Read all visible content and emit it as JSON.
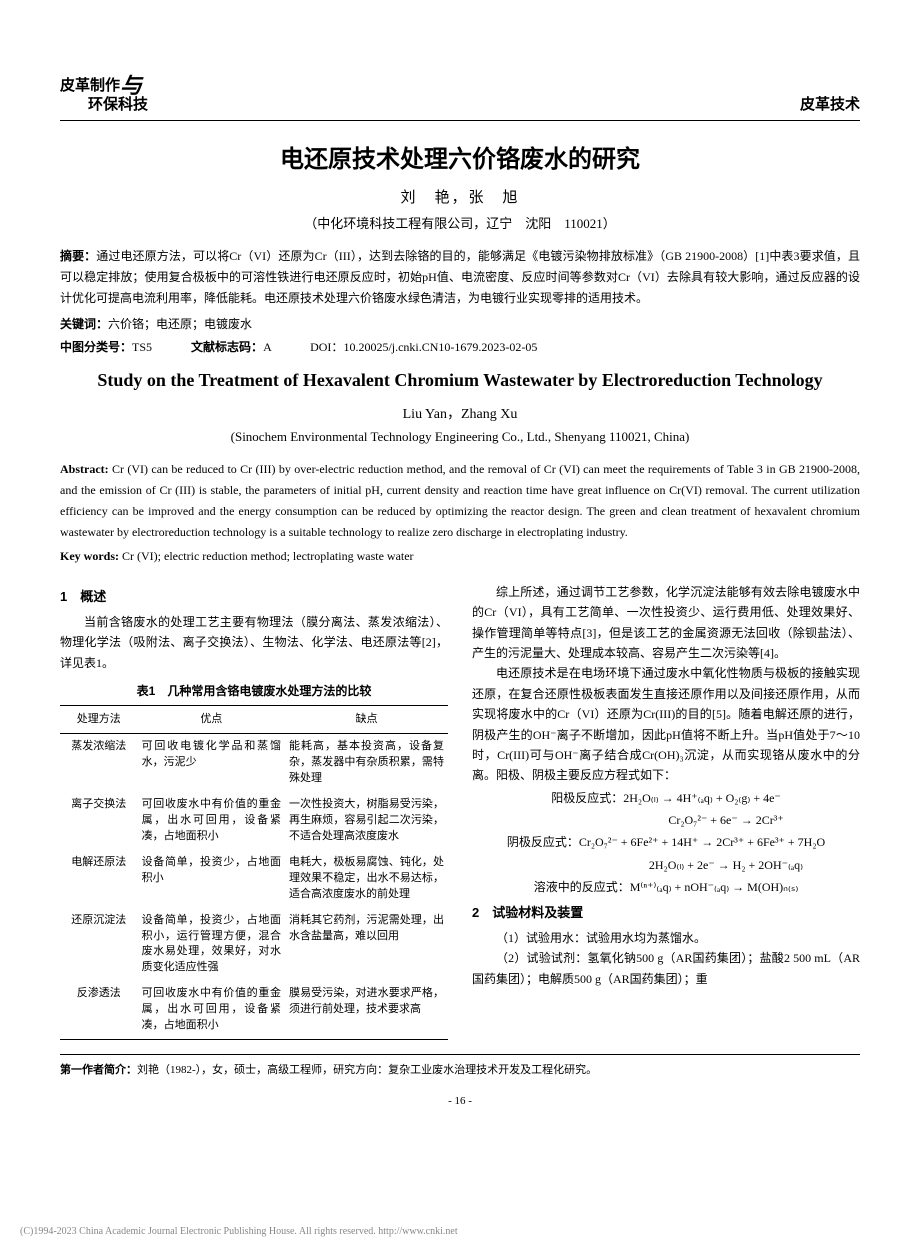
{
  "header": {
    "journal_line1": "皮革制作",
    "journal_amp": "与",
    "journal_line2": "环保科技",
    "section": "皮革技术"
  },
  "title_cn": "电还原技术处理六价铬废水的研究",
  "authors_cn": "刘　艳，张　旭",
  "affil_cn": "（中化环境科技工程有限公司，辽宁　沈阳　110021）",
  "abstract_cn_label": "摘要：",
  "abstract_cn": "通过电还原方法，可以将Cr（VI）还原为Cr（III），达到去除铬的目的，能够满足《电镀污染物排放标准》（GB 21900-2008）[1]中表3要求值，且可以稳定排放；使用复合极板中的可溶性铁进行电还原反应时，初始pH值、电流密度、反应时间等参数对Cr（VI）去除具有较大影响，通过反应器的设计优化可提高电流利用率，降低能耗。电还原技术处理六价铬废水绿色清洁，为电镀行业实现零排的适用技术。",
  "kw_cn_label": "关键词：",
  "kw_cn": "六价铬；电还原；电镀废水",
  "class_label1": "中图分类号：",
  "class_val1": "TS5",
  "class_label2": "文献标志码：",
  "class_val2": "A",
  "doi_label": "DOI：",
  "doi": "10.20025/j.cnki.CN10-1679.2023-02-05",
  "title_en": "Study on the Treatment of Hexavalent Chromium Wastewater by Electroreduction Technology",
  "authors_en": "Liu Yan，Zhang Xu",
  "affil_en": "(Sinochem Environmental Technology Engineering Co., Ltd., Shenyang 110021, China)",
  "abstract_en_label": "Abstract: ",
  "abstract_en": "Cr (VI) can be reduced to Cr (III) by over-electric reduction method, and the removal of Cr (VI) can meet the requirements of Table 3 in GB 21900-2008, and the emission of Cr (III) is stable, the parameters of initial pH, current density and reaction time have great influence on Cr(VI) removal. The current utilization efficiency can be improved and the energy consumption can be reduced by optimizing the reactor design. The green and clean treatment of hexavalent chromium wastewater by electroreduction technology is a suitable technology to realize zero discharge in electroplating industry.",
  "kw_en_label": "Key words: ",
  "kw_en": "Cr (VI); electric reduction method; lectroplating waste water",
  "sec1_heading": "1　概述",
  "sec1_p1": "当前含铬废水的处理工艺主要有物理法（膜分离法、蒸发浓缩法）、物理化学法（吸附法、离子交换法）、生物法、化学法、电还原法等[2]，详见表1。",
  "table1_caption": "表1　几种常用含铬电镀废水处理方法的比较",
  "table1_headers": [
    "处理方法",
    "优点",
    "缺点"
  ],
  "table1_rows": [
    [
      "蒸发浓缩法",
      "可回收电镀化学品和蒸馏水，污泥少",
      "能耗高，基本投资高，设备复杂，蒸发器中有杂质积累，需特殊处理"
    ],
    [
      "离子交换法",
      "可回收废水中有价值的重金属，出水可回用，设备紧凑，占地面积小",
      "一次性投资大，树脂易受污染，再生麻烦，容易引起二次污染，不适合处理高浓度废水"
    ],
    [
      "电解还原法",
      "设备简单，投资少，占地面积小",
      "电耗大，极板易腐蚀、钝化，处理效果不稳定，出水不易达标，适合高浓度废水的前处理"
    ],
    [
      "还原沉淀法",
      "设备简单，投资少，占地面积小，运行管理方便，混合废水易处理，效果好，对水质变化适应性强",
      "消耗其它药剂，污泥需处理，出水含盐量高，难以回用"
    ],
    [
      "反渗透法",
      "可回收废水中有价值的重金属，出水可回用，设备紧凑，占地面积小",
      "膜易受污染，对进水要求严格，须进行前处理，技术要求高"
    ]
  ],
  "col2_p1": "综上所述，通过调节工艺参数，化学沉淀法能够有效去除电镀废水中的Cr（VI），具有工艺简单、一次性投资少、运行费用低、处理效果好、操作管理简单等特点[3]，但是该工艺的金属资源无法回收（除钡盐法）、产生的污泥量大、处理成本较高、容易产生二次污染等[4]。",
  "col2_p2": "电还原技术是在电场环境下通过废水中氧化性物质与极板的接触实现还原，在复合还原性极板表面发生直接还原作用以及间接还原作用，从而实现将废水中的Cr（VI）还原为Cr(III)的目的[5]。随着电解还原的进行，阴极产生的OH⁻离子不断增加，因此pH值将不断上升。当pH值处于7～10时，Cr(III)可与OH⁻离子结合成Cr(OH)₃沉淀，从而实现铬从废水中的分离。阳极、阴极主要反应方程式如下：",
  "eq1_label": "阳极反应式：",
  "eq1": "2H₂O₍ₗ₎ → 4H⁺₍ₐq₎ + O₂₍g₎ + 4e⁻",
  "eq2": "Cr₂O₇²⁻ + 6e⁻ → 2Cr³⁺",
  "eq3_label": "阴极反应式：",
  "eq3": "Cr₂O₇²⁻ + 6Fe²⁺ + 14H⁺ → 2Cr³⁺ + 6Fe³⁺ + 7H₂O",
  "eq4": "2H₂O₍ₗ₎ + 2e⁻ → H₂ + 2OH⁻₍ₐq₎",
  "eq5_label": "溶液中的反应式：",
  "eq5": "M⁽ⁿ⁺⁾₍ₐq₎ + nOH⁻₍ₐq₎ → M(OH)ₙ₍ₛ₎",
  "sec2_heading": "2　试验材料及装置",
  "sec2_p1": "（1）试验用水：试验用水均为蒸馏水。",
  "sec2_p2": "（2）试验试剂：氢氧化钠500 g（AR国药集团）；盐酸2 500 mL（AR 国药集团）；电解质500 g（AR国药集团）；重",
  "footer_label": "第一作者简介：",
  "footer_text": "刘艳（1982-），女，硕士，高级工程师，研究方向：复杂工业废水治理技术开发及工程化研究。",
  "page_num": "- 16 -",
  "copyright": "(C)1994-2023 China Academic Journal Electronic Publishing House. All rights reserved.    http://www.cnki.net"
}
